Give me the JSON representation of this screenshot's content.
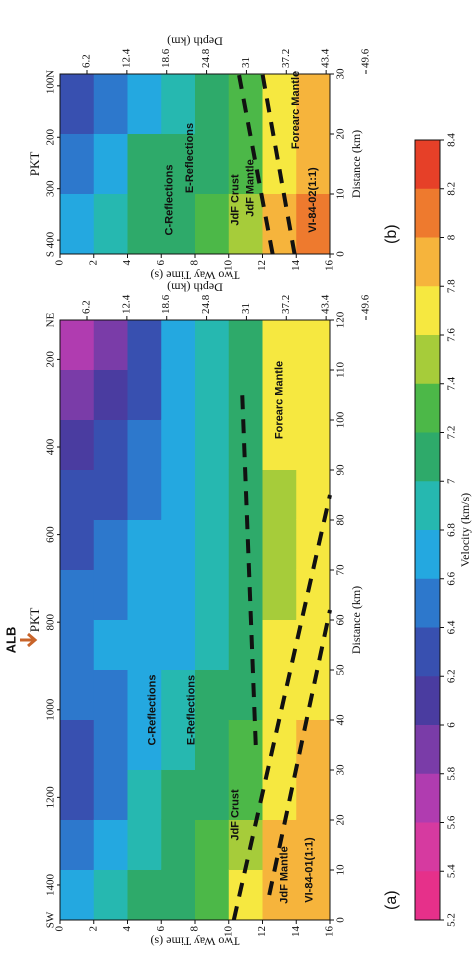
{
  "chart_data": [
    {
      "type": "heatmap",
      "title": "(a)",
      "x_label": "Distance (km)",
      "y_label": "Two Way Time (s)",
      "y2_label": "Depth (km)",
      "x2_label": "PKT",
      "xlim": [
        0,
        120
      ],
      "xticks": [
        0,
        10,
        20,
        30,
        40,
        50,
        60,
        70,
        80,
        90,
        100,
        110,
        120
      ],
      "ylim": [
        0,
        16
      ],
      "y_inverted": true,
      "yticks": [
        0,
        2,
        4,
        6,
        8,
        10,
        12,
        14,
        16
      ],
      "y2lim": [
        2,
        44
      ],
      "y2ticks": [
        6.2,
        12.4,
        18.6,
        24.8,
        31.0,
        37.2,
        43.4,
        49.6
      ],
      "x2lim": [
        1480,
        110
      ],
      "x2ticks": [
        1400,
        1200,
        1000,
        800,
        600,
        400,
        200
      ],
      "x2_ends": [
        "SW",
        "NE"
      ],
      "x_edges": [
        0,
        10,
        20,
        30,
        40,
        50,
        60,
        70,
        80,
        90,
        100,
        110,
        120
      ],
      "y_edges": [
        0,
        2,
        4,
        6,
        8,
        10,
        12,
        14,
        16
      ],
      "values": [
        [
          6.6,
          6.4,
          6.2,
          6.2,
          6.4,
          6.4,
          6.4,
          6.2,
          6.2,
          6.0,
          5.8,
          5.6
        ],
        [
          6.8,
          6.6,
          6.4,
          6.4,
          6.4,
          6.6,
          6.4,
          6.4,
          6.2,
          6.2,
          6.0,
          5.8
        ],
        [
          7.0,
          6.8,
          6.8,
          6.6,
          6.6,
          6.6,
          6.6,
          6.6,
          6.4,
          6.4,
          6.2,
          6.2
        ],
        [
          7.0,
          7.0,
          7.0,
          6.8,
          6.8,
          6.6,
          6.6,
          6.6,
          6.6,
          6.6,
          6.6,
          6.6
        ],
        [
          7.2,
          7.2,
          7.0,
          7.0,
          7.0,
          6.8,
          6.8,
          6.8,
          6.8,
          6.8,
          6.8,
          6.8
        ],
        [
          7.6,
          7.4,
          7.2,
          7.2,
          7.0,
          7.0,
          7.0,
          7.0,
          7.0,
          7.0,
          7.0,
          7.0
        ],
        [
          7.8,
          7.8,
          7.6,
          7.6,
          7.6,
          7.6,
          7.4,
          7.4,
          7.4,
          7.6,
          7.6,
          7.6
        ],
        [
          7.8,
          7.8,
          7.8,
          7.8,
          7.6,
          7.6,
          7.6,
          7.6,
          7.6,
          7.6,
          7.6,
          7.6
        ]
      ],
      "annotations": [
        {
          "text": "C-Reflections",
          "color": "#e8352a"
        },
        {
          "text": "E-Reflections",
          "color": "#e8352a"
        },
        {
          "text": "JdF Crust",
          "color": "#2a2f9a"
        },
        {
          "text": "JdF Mantle",
          "color": "#2a2f9a"
        },
        {
          "text": "Forearc Mantle",
          "color": "#2a2f9a"
        },
        {
          "text": "VI-84-01(1:1)",
          "color": "#111111"
        },
        {
          "text": "ALB",
          "color": "#c8642a"
        }
      ]
    },
    {
      "type": "heatmap",
      "title": "(b)",
      "x_label": "Distance (km)",
      "y_label": "Two Way Time (s)",
      "y2_label": "Depth (km)",
      "x2_label": "PKT",
      "xlim": [
        0,
        30
      ],
      "xticks": [
        0,
        10,
        20,
        30
      ],
      "ylim": [
        0,
        16
      ],
      "y_inverted": true,
      "yticks": [
        0,
        2,
        4,
        6,
        8,
        10,
        12,
        14,
        16
      ],
      "y2lim": [
        2,
        44
      ],
      "y2ticks": [
        6.2,
        12.4,
        18.6,
        24.8,
        31.0,
        37.2,
        43.4,
        49.6
      ],
      "x2lim": [
        427,
        77
      ],
      "x2ticks": [
        400,
        300,
        200,
        100
      ],
      "x2_ends": [
        "S",
        "N"
      ],
      "x_edges": [
        0,
        10,
        20,
        30
      ],
      "y_edges": [
        0,
        2,
        4,
        6,
        8,
        10,
        12,
        14,
        16
      ],
      "values": [
        [
          6.6,
          6.4,
          6.2
        ],
        [
          6.8,
          6.6,
          6.4
        ],
        [
          7.0,
          7.0,
          6.6
        ],
        [
          7.0,
          7.0,
          6.8
        ],
        [
          7.2,
          7.0,
          7.0
        ],
        [
          7.4,
          7.2,
          7.2
        ],
        [
          7.8,
          7.6,
          7.6
        ],
        [
          8.0,
          7.8,
          7.8
        ]
      ],
      "annotations": [
        {
          "text": "C-Reflections",
          "color": "#e8352a"
        },
        {
          "text": "E-Reflections",
          "color": "#e8352a"
        },
        {
          "text": "JdF Crust",
          "color": "#ffffff"
        },
        {
          "text": "JdF Mantle",
          "color": "#2a2f9a"
        },
        {
          "text": "Forearc Mantle",
          "color": "#2a2f9a"
        },
        {
          "text": "VI-84-02(1:1)",
          "color": "#111111"
        }
      ]
    }
  ],
  "colorbar": {
    "label": "Velocity (km/s)",
    "ticks": [
      5.2,
      5.4,
      5.6,
      5.8,
      6.0,
      6.2,
      6.4,
      6.6,
      6.8,
      7.0,
      7.2,
      7.4,
      7.6,
      7.8,
      8.0,
      8.2,
      8.4
    ],
    "colors": [
      "#e6308a",
      "#d63aa0",
      "#b03cb0",
      "#7a3ca8",
      "#4a3ca0",
      "#3850b0",
      "#2d78cc",
      "#24a8e0",
      "#26b8b0",
      "#2eaa6a",
      "#4cb848",
      "#a6cc3a",
      "#f6e840",
      "#f6b43c",
      "#ee7a2e",
      "#e64028"
    ]
  }
}
